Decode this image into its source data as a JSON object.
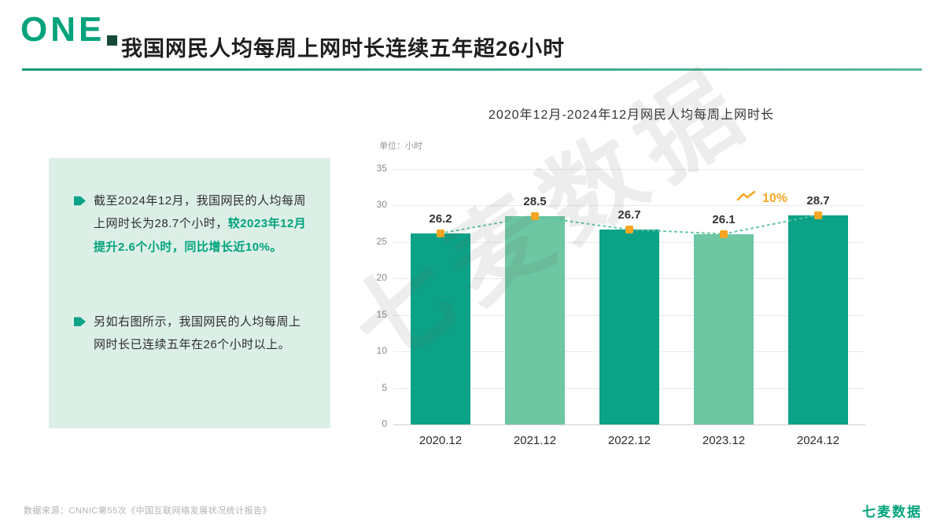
{
  "header": {
    "section_number": "ONE",
    "title": "我国网民人均每周上网时长连续五年超26小时"
  },
  "panel": {
    "bullet1_text": "截至2024年12月，我国网民的人均每周上网时长为28.7个小时，",
    "bullet1_highlight": "较2023年12月提升2.6个小时，同比增长近10%。",
    "bullet2_text": "另如右图所示，我国网民的人均每周上网时长已连续五年在26个小时以上。"
  },
  "chart": {
    "title": "2020年12月-2024年12月网民人均每周上网时长",
    "unit_label": "单位：小时",
    "growth_label": "10%"
  },
  "chart_data": {
    "type": "bar",
    "title": "2020年12月-2024年12月网民人均每周上网时长",
    "unit": "小时",
    "categories": [
      "2020.12",
      "2021.12",
      "2022.12",
      "2023.12",
      "2024.12"
    ],
    "values": [
      26.2,
      28.5,
      26.7,
      26.1,
      28.7
    ],
    "ylim": [
      0,
      35
    ],
    "yticks": [
      0,
      5,
      10,
      15,
      20,
      25,
      30,
      35
    ],
    "grid": true,
    "overlay": {
      "type": "line",
      "style": "dotted",
      "marker": "square",
      "annotation": "10%"
    }
  },
  "watermark": "七麦数据",
  "footer": {
    "source": "数据来源：CNNIC第55次《中国互联网络发展状况统计报告》",
    "logo": "七麦数据"
  },
  "colors": {
    "accent_green": "#00a37b",
    "bar_dark": "#0ba287",
    "bar_light": "#6cc7a2",
    "line_green": "#5bc4a0",
    "marker_orange": "#f6a623",
    "panel_bg": "#dcefe7",
    "section_square": "#17493b"
  }
}
